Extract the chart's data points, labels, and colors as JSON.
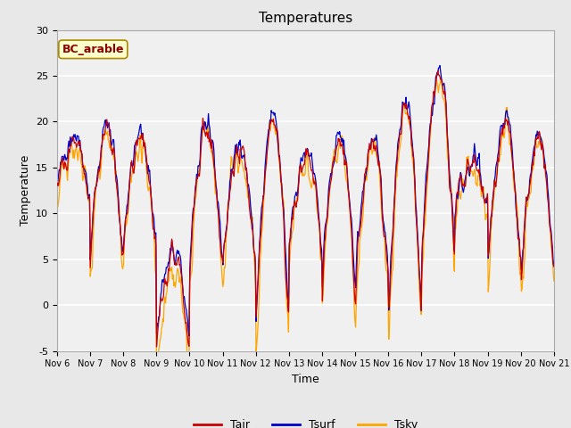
{
  "title": "Temperatures",
  "xlabel": "Time",
  "ylabel": "Temperature",
  "ylim": [
    -5,
    30
  ],
  "annotation": "BC_arable",
  "annotation_color": "#8B0000",
  "annotation_bg": "#FFFFCC",
  "annotation_edge": "#AA8800",
  "fig_bg": "#E8E8E8",
  "plot_bg": "#F0F0F0",
  "grid_color": "white",
  "color_Tair": "#CC0000",
  "color_Tsurf": "#0000CC",
  "color_Tsky": "#FFA500",
  "x_tick_labels": [
    "Nov 6",
    "Nov 7",
    "Nov 8",
    "Nov 9",
    "Nov 10",
    "Nov 11",
    "Nov 12",
    "Nov 13",
    "Nov 14",
    "Nov 15",
    "Nov 16",
    "Nov 17",
    "Nov 18",
    "Nov 19",
    "Nov 20",
    "Nov 21"
  ],
  "n_days": 15,
  "pts_per_day": 48,
  "yticks": [
    -5,
    0,
    5,
    10,
    15,
    20,
    25,
    30
  ]
}
